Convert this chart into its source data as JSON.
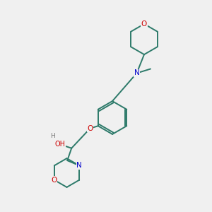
{
  "background_color": "#f0f0f0",
  "bond_color": "#2d7a6a",
  "atom_colors": {
    "O": "#cc0000",
    "N": "#0000cc",
    "C": "#2d7a6a",
    "H": "#777777"
  },
  "figsize": [
    3.0,
    3.0
  ],
  "dpi": 100,
  "xlim": [
    0,
    10
  ],
  "ylim": [
    0,
    10
  ]
}
